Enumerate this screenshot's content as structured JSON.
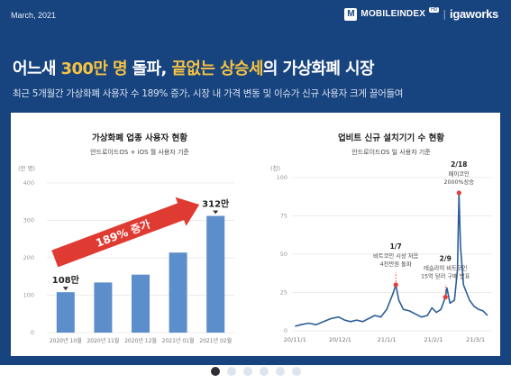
{
  "header": {
    "date": "March, 2021",
    "logo_mobileindex": "MOBILEINDEX",
    "logo_badge": "HD",
    "logo_igaworks": "igaworks"
  },
  "headline": {
    "part1": "어느새 ",
    "highlight1": "300만 명",
    "part2": " 돌파, ",
    "highlight2": "끝없는 상승세",
    "part3": "의 가상화폐 시장"
  },
  "subtitle": "최근 5개월간 가상화폐 사용자 수 189% 증가, 시장 내 가격 변동 및 이슈가 신규 사용자 크게 끌어들여",
  "colors": {
    "background": "#17437f",
    "accent": "#f5c242",
    "bar": "#5b8ecb",
    "line": "#2c5d98",
    "marker": "#e0403a",
    "arrow": "#e03b32"
  },
  "chart_data": [
    {
      "type": "bar",
      "title": "가상화폐 업종 사용자 현황",
      "subtitle": "안드로이드OS + iOS 월 사용자 기준",
      "unit": "(만 명)",
      "categories": [
        "2020년 10월",
        "2020년 11월",
        "2020년 12월",
        "2021년 01월",
        "2021년 02월"
      ],
      "values": [
        108,
        134,
        155,
        214,
        312
      ],
      "value_labels": [
        "108만",
        "",
        "",
        "",
        "312만"
      ],
      "ylim": [
        0,
        400
      ],
      "yticks": [
        0,
        100,
        200,
        300,
        400
      ],
      "grid": true,
      "annotation": "189% 증가"
    },
    {
      "type": "line",
      "title": "업비트 신규 설치기기 수 현황",
      "subtitle": "안드로이드OS 일 사용자 기준",
      "unit": "(천)",
      "xticks": [
        "20/11/1",
        "20/12/1",
        "21/1/1",
        "21/2/1",
        "21/3/1"
      ],
      "ylim": [
        0,
        100
      ],
      "yticks": [
        0,
        25,
        50,
        75,
        100
      ],
      "grid": true,
      "series": [
        {
          "x": [
            "20/11/1",
            "20/11/5",
            "20/11/10",
            "20/11/15",
            "20/11/20",
            "20/11/25",
            "20/11/30",
            "20/12/4",
            "20/12/8",
            "20/12/12",
            "20/12/16",
            "20/12/20",
            "20/12/24",
            "20/12/28",
            "21/1/1",
            "21/1/3",
            "21/1/5",
            "21/1/7",
            "21/1/9",
            "21/1/12",
            "21/1/16",
            "21/1/20",
            "21/1/24",
            "21/1/28",
            "21/1/31",
            "21/2/3",
            "21/2/6",
            "21/2/9",
            "21/2/10",
            "21/2/12",
            "21/2/15",
            "21/2/17",
            "21/2/18",
            "21/2/19",
            "21/2/21",
            "21/2/23",
            "21/2/25",
            "21/2/28",
            "21/3/3",
            "21/3/6",
            "21/3/9"
          ],
          "values": [
            3,
            4,
            5,
            4,
            6,
            8,
            9,
            7,
            6,
            7,
            6,
            8,
            10,
            9,
            14,
            19,
            24,
            30,
            20,
            14,
            13,
            11,
            9,
            10,
            15,
            12,
            14,
            22,
            28,
            18,
            20,
            40,
            90,
            55,
            30,
            25,
            20,
            16,
            14,
            13,
            10
          ]
        }
      ],
      "annotations": [
        {
          "date": "1/7",
          "text1": "비트코인 시상 처음",
          "text2": "4천만원 돌파",
          "x": "21/1/7",
          "y": 30
        },
        {
          "date": "2/9",
          "text1": "테슬라의 비트코인",
          "text2": "15억 달러 구매 발표",
          "x": "21/2/9",
          "y": 22
        },
        {
          "date": "2/18",
          "text1": "페이코인",
          "text2": "2000%상승",
          "x": "21/2/18",
          "y": 90
        }
      ]
    }
  ],
  "pager": {
    "pages": 6,
    "current": 1
  }
}
